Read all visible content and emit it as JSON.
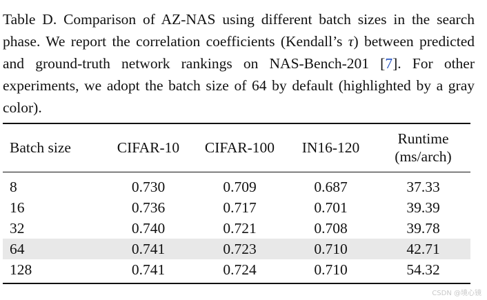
{
  "caption": {
    "prefix": "Table D. Comparison of AZ-NAS using different batch sizes in the search phase.  We report the correlation coefficients (Kendall’s ",
    "tau": "τ",
    "middle": ") between predicted and ground-truth network rankings on NAS-Bench-201 [",
    "cite": "7",
    "suffix": "]. For other experiments, we adopt the batch size of 64 by default (highlighted by a gray color)."
  },
  "table": {
    "headers": {
      "batch": "Batch size",
      "cifar10": "CIFAR-10",
      "cifar100": "CIFAR-100",
      "in16": "IN16-120",
      "runtime_line1": "Runtime",
      "runtime_line2": "(ms/arch)"
    },
    "rows": [
      [
        "8",
        "0.730",
        "0.709",
        "0.687",
        "37.33"
      ],
      [
        "16",
        "0.736",
        "0.717",
        "0.701",
        "39.39"
      ],
      [
        "32",
        "0.740",
        "0.721",
        "0.708",
        "39.78"
      ],
      [
        "64",
        "0.741",
        "0.723",
        "0.710",
        "42.71"
      ],
      [
        "128",
        "0.741",
        "0.724",
        "0.710",
        "54.32"
      ]
    ],
    "highlight_row_index": 3,
    "highlight_color": "#e8e8e8"
  },
  "watermark": "CSDN @境心镜"
}
